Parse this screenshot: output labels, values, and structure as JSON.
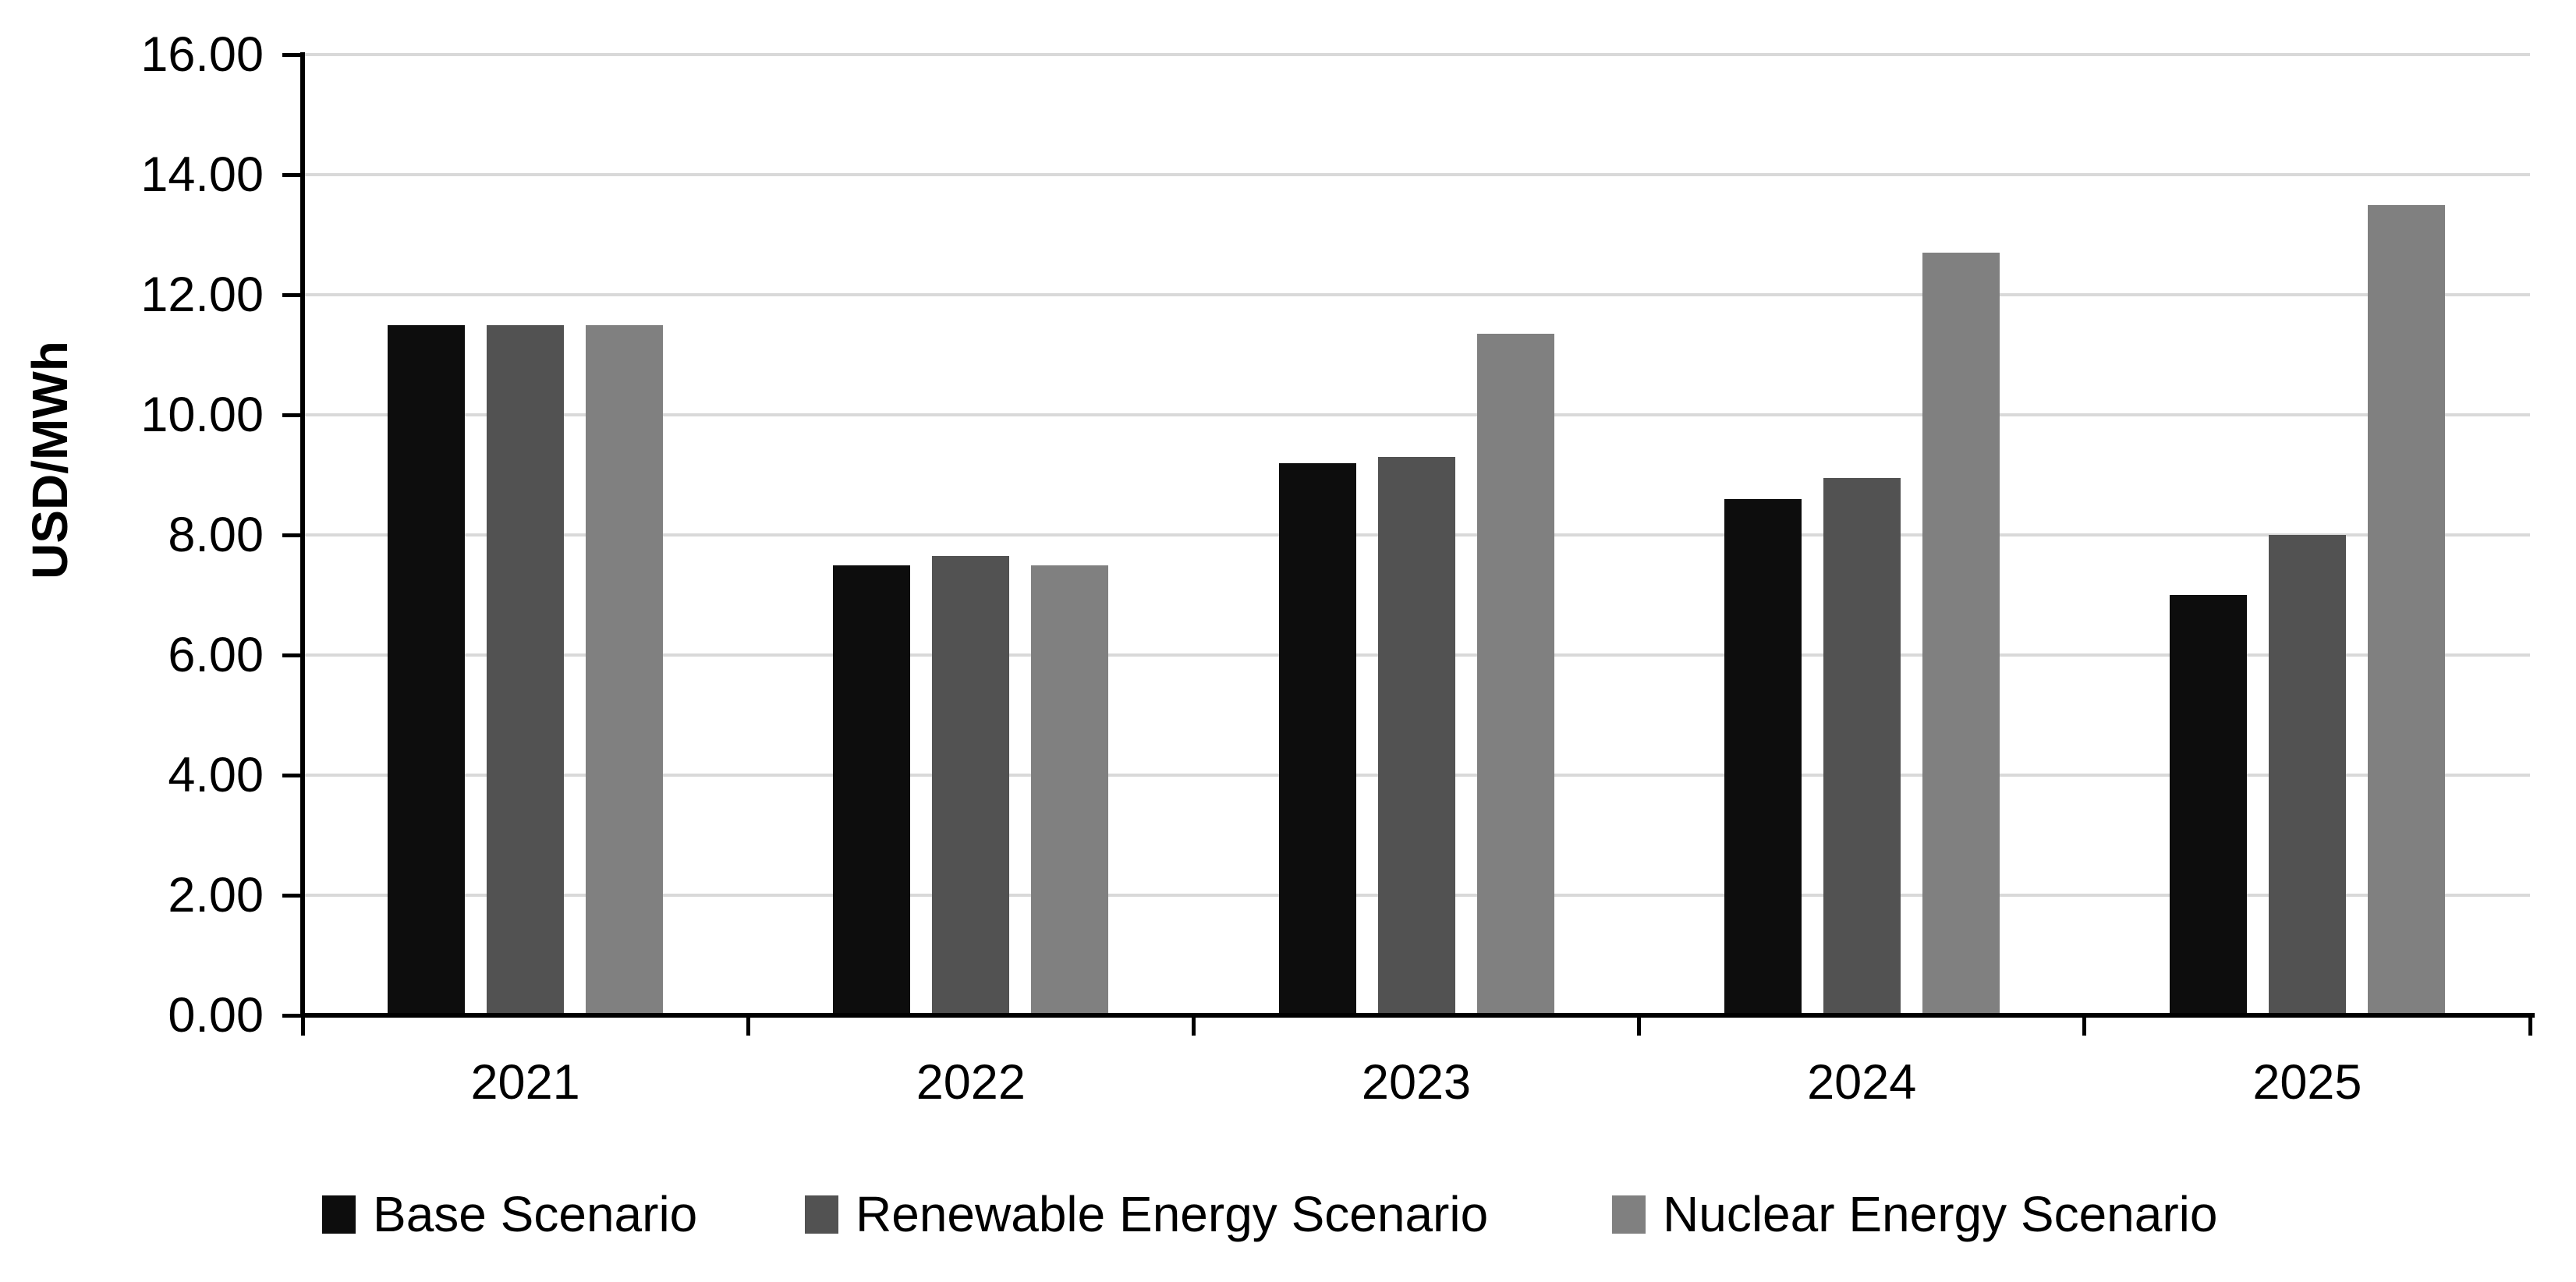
{
  "chart_data": {
    "type": "bar",
    "title": "",
    "ylabel": "USD/MWh",
    "ylim": [
      0,
      16
    ],
    "ytick_step": 2,
    "ytick_labels": [
      "0.00",
      "2.00",
      "4.00",
      "6.00",
      "8.00",
      "10.00",
      "12.00",
      "14.00",
      "16.00"
    ],
    "categories": [
      "2021",
      "2022",
      "2023",
      "2024",
      "2025"
    ],
    "series": [
      {
        "name": "Base Scenario",
        "color": "#0d0d0d",
        "values": [
          11.5,
          7.5,
          9.2,
          8.6,
          7.0
        ]
      },
      {
        "name": "Renewable Energy Scenario",
        "color": "#525252",
        "values": [
          11.5,
          7.65,
          9.3,
          8.95,
          8.0
        ]
      },
      {
        "name": "Nuclear Energy Scenario",
        "color": "#808080",
        "values": [
          11.5,
          7.5,
          11.35,
          12.7,
          13.5
        ]
      }
    ],
    "grid": true,
    "legend_position": "bottom",
    "gridline_color": "#d9d9d9",
    "axis_color": "#000000",
    "background_color": "#ffffff"
  }
}
